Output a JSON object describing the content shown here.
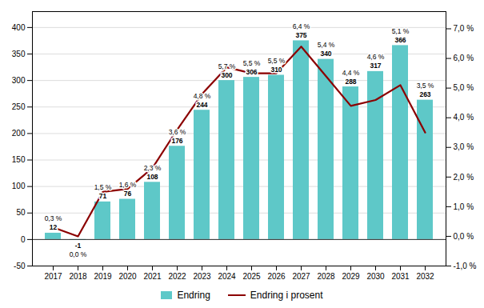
{
  "chart_data": {
    "type": "bar",
    "categories": [
      "2017",
      "2018",
      "2019",
      "2020",
      "2021",
      "2022",
      "2023",
      "2024",
      "2025",
      "2026",
      "2027",
      "2028",
      "2029",
      "2030",
      "2031",
      "2032"
    ],
    "series": [
      {
        "name": "Endring",
        "type": "bar",
        "color": "#5ec8c8",
        "values": [
          12,
          -1,
          71,
          76,
          108,
          176,
          244,
          300,
          306,
          310,
          375,
          340,
          288,
          317,
          366,
          263
        ]
      },
      {
        "name": "Endring i prosent",
        "type": "line",
        "color": "#8b0000",
        "axis": "y2",
        "values": [
          0.3,
          0.0,
          1.5,
          1.6,
          2.3,
          3.6,
          4.8,
          5.7,
          5.5,
          5.5,
          6.4,
          5.4,
          4.4,
          4.6,
          5.1,
          3.5
        ],
        "value_labels": [
          "0,3 %",
          "0,0 %",
          "1,5 %",
          "1,6 %",
          "2,3 %",
          "3,6 %",
          "4,8 %",
          "5,7 %",
          "5,5 %",
          "5,5 %",
          "6,4 %",
          "5,4 %",
          "4,4 %",
          "4,6 %",
          "5,1 %",
          "3,5 %"
        ]
      }
    ],
    "ylim": [
      -50,
      430
    ],
    "yticks": [
      -50,
      0,
      50,
      100,
      150,
      200,
      250,
      300,
      350,
      400
    ],
    "y2lim": [
      -1.0,
      7.58
    ],
    "y2ticks": [
      {
        "value": -1.0,
        "label": "-1,0 %"
      },
      {
        "value": 0.0,
        "label": "0,0 %"
      },
      {
        "value": 1.0,
        "label": "1,0 %"
      },
      {
        "value": 2.0,
        "label": "2,0 %"
      },
      {
        "value": 3.0,
        "label": "3,0 %"
      },
      {
        "value": 4.0,
        "label": "4,0 %"
      },
      {
        "value": 5.0,
        "label": "5,0 %"
      },
      {
        "value": 6.0,
        "label": "6,0 %"
      },
      {
        "value": 7.0,
        "label": "7,0 %"
      }
    ],
    "grid": true,
    "data_labels": true,
    "legend": "bottom"
  }
}
